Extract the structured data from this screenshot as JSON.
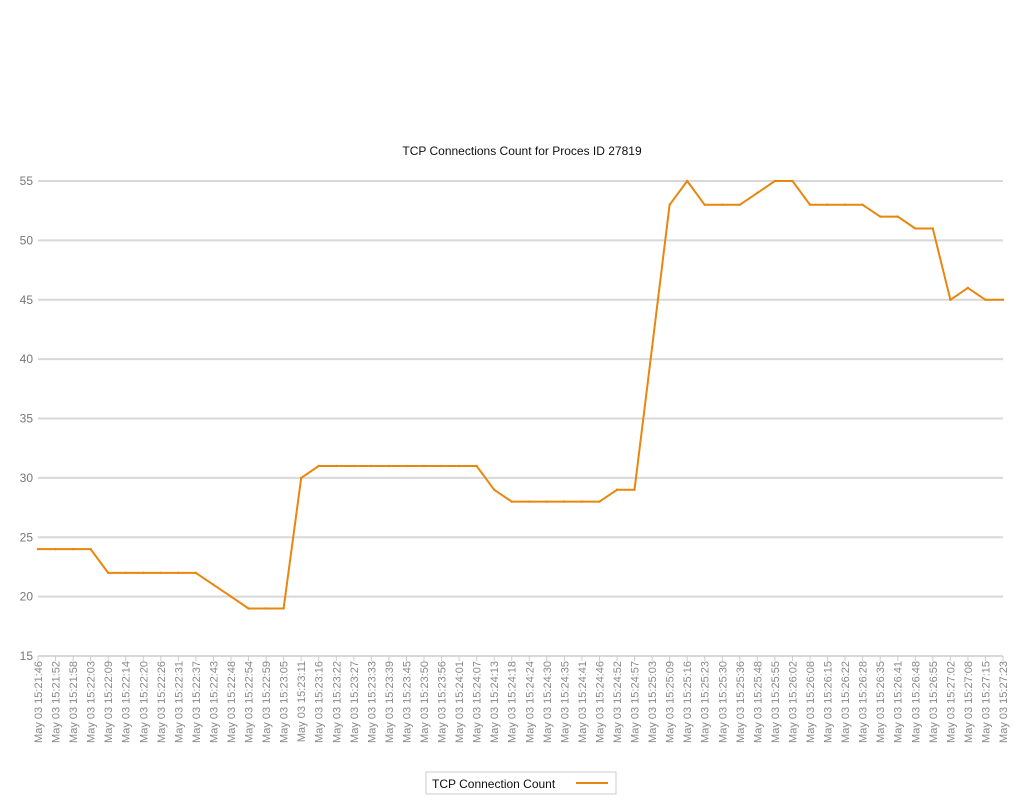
{
  "chart_data": {
    "type": "line",
    "title": "TCP Connections Count for Proces ID 27819",
    "xlabel": "",
    "ylabel": "",
    "ylim": [
      15,
      55
    ],
    "yticks": [
      15,
      20,
      25,
      30,
      35,
      40,
      45,
      50,
      55
    ],
    "grid": true,
    "legend_position": "bottom-center",
    "line_color": "#e8870f",
    "x": [
      "May 03 15:21:46",
      "May 03 15:21:52",
      "May 03 15:21:58",
      "May 03 15:22:03",
      "May 03 15:22:09",
      "May 03 15:22:14",
      "May 03 15:22:20",
      "May 03 15:22:26",
      "May 03 15:22:31",
      "May 03 15:22:37",
      "May 03 15:22:43",
      "May 03 15:22:48",
      "May 03 15:22:54",
      "May 03 15:22:59",
      "May 03 15:23:05",
      "May 03 15:23:11",
      "May 03 15:23:16",
      "May 03 15:23:22",
      "May 03 15:23:27",
      "May 03 15:23:33",
      "May 03 15:23:39",
      "May 03 15:23:45",
      "May 03 15:23:50",
      "May 03 15:23:56",
      "May 03 15:24:01",
      "May 03 15:24:07",
      "May 03 15:24:13",
      "May 03 15:24:18",
      "May 03 15:24:24",
      "May 03 15:24:30",
      "May 03 15:24:35",
      "May 03 15:24:41",
      "May 03 15:24:46",
      "May 03 15:24:52",
      "May 03 15:24:57",
      "May 03 15:25:03",
      "May 03 15:25:09",
      "May 03 15:25:16",
      "May 03 15:25:23",
      "May 03 15:25:30",
      "May 03 15:25:36",
      "May 03 15:25:48",
      "May 03 15:25:55",
      "May 03 15:26:02",
      "May 03 15:26:08",
      "May 03 15:26:15",
      "May 03 15:26:22",
      "May 03 15:26:28",
      "May 03 15:26:35",
      "May 03 15:26:41",
      "May 03 15:26:48",
      "May 03 15:26:55",
      "May 03 15:27:02",
      "May 03 15:27:08",
      "May 03 15:27:15",
      "May 03 15:27:23"
    ],
    "series": [
      {
        "name": "TCP Connection Count",
        "values": [
          24,
          24,
          24,
          24,
          22,
          22,
          22,
          22,
          22,
          22,
          21,
          20,
          19,
          19,
          19,
          30,
          31,
          31,
          31,
          31,
          31,
          31,
          31,
          31,
          31,
          31,
          29,
          28,
          28,
          28,
          28,
          28,
          28,
          29,
          29,
          41,
          53,
          55,
          53,
          53,
          53,
          54,
          55,
          55,
          53,
          53,
          53,
          53,
          52,
          52,
          51,
          51,
          45,
          46,
          45,
          45
        ]
      }
    ]
  }
}
